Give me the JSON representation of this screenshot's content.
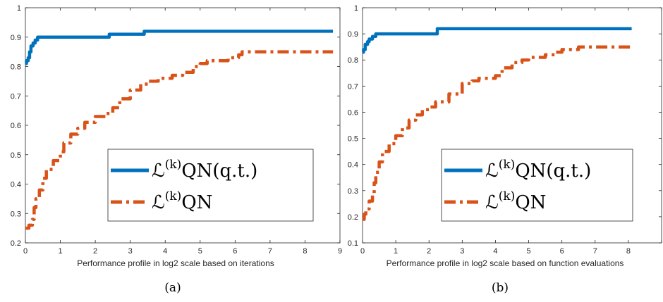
{
  "chart_data": [
    {
      "type": "line",
      "caption": "(a)",
      "xlabel": "Performance profile in  log2 scale based on iterations",
      "ylabel": "",
      "xlim": [
        0,
        9
      ],
      "ylim": [
        0.2,
        1
      ],
      "xticks": [
        "0",
        "1",
        "2",
        "3",
        "4",
        "5",
        "6",
        "7",
        "8",
        "9"
      ],
      "yticks": [
        "0.2",
        "0.3",
        "0.4",
        "0.5",
        "0.6",
        "0.7",
        "0.8",
        "0.9",
        "1"
      ],
      "grid": false,
      "legend_position": "lower-right",
      "series": [
        {
          "name_main": "ℒ",
          "name_sup": "(k)",
          "name_rest": "QN(q.t.)",
          "color": "#0072BD",
          "style": "solid",
          "points": [
            [
              0,
              0.81
            ],
            [
              0.03,
              0.82
            ],
            [
              0.08,
              0.83
            ],
            [
              0.12,
              0.85
            ],
            [
              0.16,
              0.87
            ],
            [
              0.22,
              0.88
            ],
            [
              0.28,
              0.89
            ],
            [
              0.35,
              0.9
            ],
            [
              1.0,
              0.9
            ],
            [
              2.0,
              0.9
            ],
            [
              2.3,
              0.9
            ],
            [
              2.4,
              0.91
            ],
            [
              3.0,
              0.91
            ],
            [
              3.3,
              0.91
            ],
            [
              3.4,
              0.92
            ],
            [
              5.0,
              0.92
            ],
            [
              7.0,
              0.92
            ],
            [
              8.8,
              0.92
            ]
          ]
        },
        {
          "name_main": "ℒ",
          "name_sup": "(k)",
          "name_rest": "QN",
          "color": "#D95319",
          "style": "dashed",
          "points": [
            [
              0,
              0.25
            ],
            [
              0.1,
              0.26
            ],
            [
              0.2,
              0.28
            ],
            [
              0.25,
              0.32
            ],
            [
              0.3,
              0.35
            ],
            [
              0.4,
              0.38
            ],
            [
              0.5,
              0.42
            ],
            [
              0.6,
              0.45
            ],
            [
              0.8,
              0.48
            ],
            [
              1.0,
              0.51
            ],
            [
              1.1,
              0.54
            ],
            [
              1.3,
              0.57
            ],
            [
              1.5,
              0.59
            ],
            [
              1.7,
              0.61
            ],
            [
              2.0,
              0.63
            ],
            [
              2.3,
              0.64
            ],
            [
              2.5,
              0.66
            ],
            [
              2.7,
              0.69
            ],
            [
              3.0,
              0.72
            ],
            [
              3.3,
              0.74
            ],
            [
              3.5,
              0.75
            ],
            [
              3.8,
              0.76
            ],
            [
              4.2,
              0.77
            ],
            [
              4.5,
              0.78
            ],
            [
              4.8,
              0.8
            ],
            [
              5.0,
              0.81
            ],
            [
              5.2,
              0.82
            ],
            [
              5.6,
              0.82
            ],
            [
              5.8,
              0.83
            ],
            [
              6.0,
              0.83
            ],
            [
              6.1,
              0.84
            ],
            [
              6.2,
              0.85
            ],
            [
              7.0,
              0.85
            ],
            [
              8.8,
              0.85
            ]
          ]
        }
      ]
    },
    {
      "type": "line",
      "caption": "(b)",
      "xlabel": "Performance profile in log2 scale based on function evaluations",
      "ylabel": "",
      "xlim": [
        0,
        9
      ],
      "ylim": [
        0.1,
        1
      ],
      "xticks": [
        "0",
        "1",
        "2",
        "3",
        "4",
        "5",
        "6",
        "7",
        "8",
        ""
      ],
      "yticks": [
        "0.1",
        "0.2",
        "0.3",
        "0.4",
        "0.5",
        "0.6",
        "0.7",
        "0.8",
        "0.9",
        "1"
      ],
      "grid": false,
      "legend_position": "lower-right",
      "series": [
        {
          "name_main": "ℒ",
          "name_sup": "(k)",
          "name_rest": "QN(q.t.)",
          "color": "#0072BD",
          "style": "solid",
          "points": [
            [
              0,
              0.83
            ],
            [
              0.03,
              0.84
            ],
            [
              0.08,
              0.86
            ],
            [
              0.15,
              0.87
            ],
            [
              0.2,
              0.88
            ],
            [
              0.3,
              0.89
            ],
            [
              0.4,
              0.9
            ],
            [
              1.0,
              0.9
            ],
            [
              2.0,
              0.9
            ],
            [
              2.2,
              0.9
            ],
            [
              2.25,
              0.92
            ],
            [
              3.0,
              0.92
            ],
            [
              5.0,
              0.92
            ],
            [
              7.0,
              0.92
            ],
            [
              8.1,
              0.92
            ]
          ]
        },
        {
          "name_main": "ℒ",
          "name_sup": "(k)",
          "name_rest": "QN",
          "color": "#D95319",
          "style": "dashed",
          "points": [
            [
              0,
              0.19
            ],
            [
              0.05,
              0.21
            ],
            [
              0.1,
              0.23
            ],
            [
              0.2,
              0.26
            ],
            [
              0.3,
              0.29
            ],
            [
              0.35,
              0.33
            ],
            [
              0.4,
              0.37
            ],
            [
              0.5,
              0.41
            ],
            [
              0.6,
              0.45
            ],
            [
              0.8,
              0.48
            ],
            [
              1.0,
              0.51
            ],
            [
              1.2,
              0.54
            ],
            [
              1.4,
              0.57
            ],
            [
              1.6,
              0.59
            ],
            [
              1.8,
              0.61
            ],
            [
              2.0,
              0.62
            ],
            [
              2.2,
              0.64
            ],
            [
              2.6,
              0.67
            ],
            [
              3.0,
              0.71
            ],
            [
              3.3,
              0.72
            ],
            [
              3.5,
              0.73
            ],
            [
              4.0,
              0.74
            ],
            [
              4.2,
              0.77
            ],
            [
              4.5,
              0.79
            ],
            [
              4.8,
              0.8
            ],
            [
              5.0,
              0.81
            ],
            [
              5.5,
              0.82
            ],
            [
              5.8,
              0.83
            ],
            [
              6.0,
              0.84
            ],
            [
              6.3,
              0.84
            ],
            [
              6.5,
              0.85
            ],
            [
              7.0,
              0.85
            ],
            [
              8.1,
              0.85
            ]
          ]
        }
      ]
    }
  ]
}
